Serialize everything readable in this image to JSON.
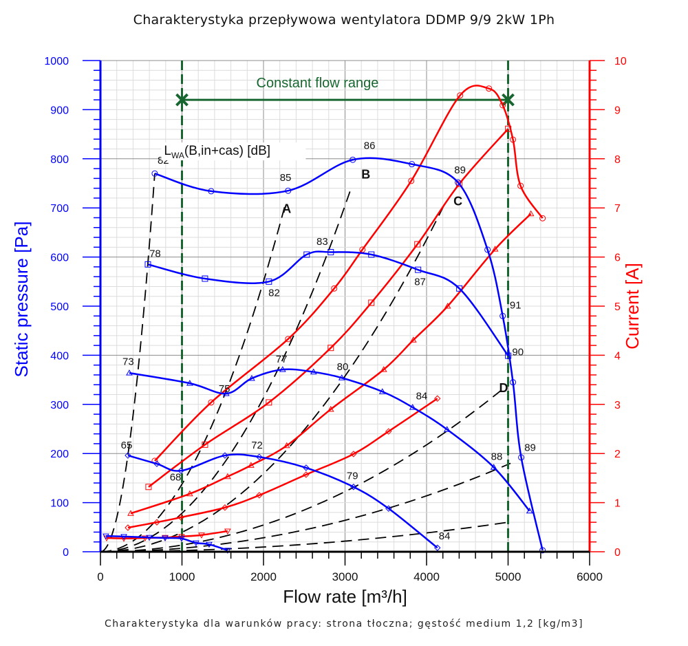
{
  "chart_data": {
    "type": "line",
    "title": "Charakterystyka przepływowa wentylatora DDMP 9/9 2kW 1Ph",
    "footnote": "Charakterystyka dla warunków pracy: strona tłoczna; gęstość medium 1,2 [kg/m3]",
    "xlabel": "Flow rate [m³/h]",
    "ylabel": "Static pressure [Pa]",
    "y2label": "Current [A]",
    "xlim": [
      0,
      6000
    ],
    "ylim": [
      0,
      1000
    ],
    "y2lim": [
      0,
      10
    ],
    "xticks": [
      "0",
      "1000",
      "2000",
      "3000",
      "4000",
      "5000",
      "6000"
    ],
    "yticks": [
      "0",
      "100",
      "200",
      "300",
      "400",
      "500",
      "600",
      "700",
      "800",
      "900",
      "1000"
    ],
    "y2ticks": [
      "0",
      "1",
      "2",
      "3",
      "4",
      "5",
      "6",
      "7",
      "8",
      "9",
      "10"
    ],
    "grid": true,
    "colors": {
      "pressure": "#0000ff",
      "current": "#ff0000",
      "flow_range": "#17662f",
      "system": "#000000",
      "grid_major": "#8c8c8c",
      "grid_minor": "#dcdcdc"
    },
    "sound_label": "L",
    "sound_label_sub": "WA",
    "sound_label_rest": "(B,in+cas) [dB]",
    "constant_flow_range": {
      "label": "Constant flow range",
      "x_min": 1000,
      "x_max": 5000,
      "pressure": 920
    },
    "pressure_series": [
      {
        "name": "pressure-circle",
        "marker": "circle",
        "x": [
          666,
          1358,
          2302,
          3095,
          3820,
          4385,
          4748,
          4934,
          5060,
          5161,
          5423
        ],
        "y": [
          770,
          734,
          735,
          798,
          789,
          752,
          615,
          480,
          345,
          192,
          3
        ]
      },
      {
        "name": "pressure-square",
        "marker": "square",
        "x": [
          582,
          1282,
          2066,
          2530,
          2825,
          3323,
          3896,
          4402,
          5001
        ],
        "y": [
          585,
          556,
          550,
          605,
          610,
          605,
          574,
          536,
          399
        ]
      },
      {
        "name": "pressure-triangle",
        "marker": "triangle",
        "x": [
          354,
          1096,
          1543,
          1856,
          2235,
          2614,
          2960,
          3458,
          3829,
          4251,
          4824,
          5263
        ],
        "y": [
          364,
          343,
          322,
          353,
          371,
          366,
          354,
          326,
          294,
          249,
          172,
          83
        ]
      },
      {
        "name": "pressure-diamond",
        "marker": "diamond",
        "x": [
          337,
          692,
          987,
          1527,
          1948,
          2522,
          3104,
          3534,
          4133
        ],
        "y": [
          196,
          179,
          165,
          196,
          193,
          171,
          132,
          88,
          8
        ]
      },
      {
        "name": "pressure-invtriangle",
        "marker": "invtriangle",
        "x": [
          67,
          287,
          599,
          793,
          995,
          1172,
          1333,
          1560
        ],
        "y": [
          32,
          31,
          29,
          28,
          27,
          18,
          15,
          3
        ]
      }
    ],
    "current_series": [
      {
        "name": "current-circle",
        "marker": "circle",
        "x": [
          666,
          1358,
          2302,
          2867,
          3213,
          3812,
          4411,
          4765,
          4934,
          5060,
          5153,
          5423
        ],
        "y": [
          1.85,
          3.04,
          4.33,
          5.36,
          6.15,
          7.55,
          9.29,
          9.43,
          9.09,
          8.39,
          7.45,
          6.79
        ]
      },
      {
        "name": "current-square",
        "marker": "square",
        "x": [
          590,
          1282,
          2066,
          2825,
          3323,
          3888,
          4402,
          5001
        ],
        "y": [
          1.32,
          2.18,
          3.04,
          4.15,
          5.07,
          6.26,
          7.49,
          8.61
        ]
      },
      {
        "name": "current-triangle",
        "marker": "triangle",
        "x": [
          371,
          1096,
          1560,
          1847,
          2285,
          2825,
          3475,
          3838,
          4259,
          4841,
          5280
        ],
        "y": [
          0.78,
          1.18,
          1.53,
          1.76,
          2.16,
          2.9,
          3.71,
          4.31,
          5.0,
          6.16,
          6.88
        ]
      },
      {
        "name": "current-diamond",
        "marker": "diamond",
        "x": [
          337,
          692,
          987,
          1527,
          1948,
          2522,
          3104,
          3534,
          4133
        ],
        "y": [
          0.49,
          0.6,
          0.7,
          0.9,
          1.15,
          1.57,
          1.99,
          2.45,
          3.12
        ]
      },
      {
        "name": "current-invtriangle",
        "marker": "invtriangle",
        "x": [
          76,
          287,
          548,
          793,
          995,
          1240,
          1560
        ],
        "y": [
          0.28,
          0.27,
          0.28,
          0.29,
          0.31,
          0.34,
          0.42
        ]
      }
    ],
    "system_curves": [
      {
        "name": "system-1",
        "label": "",
        "x_end": 666,
        "y_end": 770
      },
      {
        "name": "system-A",
        "label": "A",
        "x_end": 2270,
        "y_end": 709
      },
      {
        "name": "system-B",
        "label": "B",
        "x_end": 3070,
        "y_end": 738
      },
      {
        "name": "system-C",
        "label": "C",
        "x_end": 4240,
        "y_end": 714
      },
      {
        "name": "system-D",
        "label": "D",
        "x_end": 5000,
        "y_end": 340
      },
      {
        "name": "system-E",
        "label": "",
        "x_end": 5030,
        "y_end": 180
      },
      {
        "name": "system-F",
        "label": "",
        "x_end": 5000,
        "y_end": 60
      }
    ],
    "point_labels": [
      {
        "text": "82",
        "x": 700,
        "y": 790
      },
      {
        "text": "85",
        "x": 2200,
        "y": 755
      },
      {
        "text": "86",
        "x": 3230,
        "y": 820
      },
      {
        "text": "89",
        "x": 4340,
        "y": 770
      },
      {
        "text": "78",
        "x": 600,
        "y": 600
      },
      {
        "text": "82",
        "x": 2060,
        "y": 520
      },
      {
        "text": "83",
        "x": 2650,
        "y": 625
      },
      {
        "text": "87",
        "x": 3850,
        "y": 543
      },
      {
        "text": "91",
        "x": 5020,
        "y": 495
      },
      {
        "text": "90",
        "x": 5050,
        "y": 400
      },
      {
        "text": "73",
        "x": 270,
        "y": 380
      },
      {
        "text": "75",
        "x": 1450,
        "y": 325
      },
      {
        "text": "77",
        "x": 2150,
        "y": 385
      },
      {
        "text": "80",
        "x": 2900,
        "y": 370
      },
      {
        "text": "84",
        "x": 3870,
        "y": 310
      },
      {
        "text": "88",
        "x": 4790,
        "y": 187
      },
      {
        "text": "89",
        "x": 5200,
        "y": 205
      },
      {
        "text": "65",
        "x": 250,
        "y": 210
      },
      {
        "text": "68",
        "x": 850,
        "y": 145
      },
      {
        "text": "72",
        "x": 1850,
        "y": 210
      },
      {
        "text": "79",
        "x": 3020,
        "y": 148
      },
      {
        "text": "84",
        "x": 4150,
        "y": 25
      }
    ],
    "curve_letters": [
      {
        "text": "A",
        "x": 2230,
        "y": 690
      },
      {
        "text": "B",
        "x": 3200,
        "y": 760
      },
      {
        "text": "C",
        "x": 4330,
        "y": 705
      },
      {
        "text": "D",
        "x": 4890,
        "y": 325
      }
    ]
  }
}
